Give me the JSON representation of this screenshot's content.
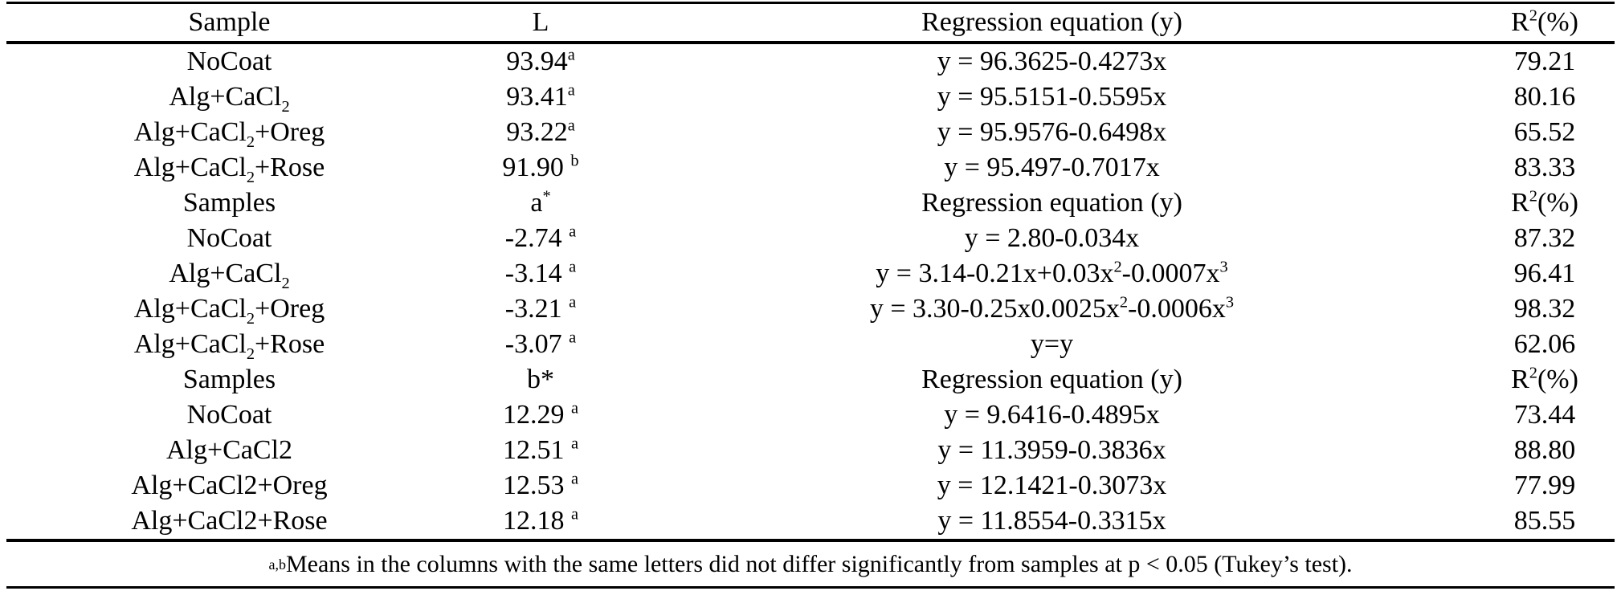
{
  "table": {
    "header": {
      "sample": "Sample",
      "value": "L",
      "equation": "Regression equation (y)",
      "r2": "R^{2}(%)"
    },
    "rows": [
      {
        "sample": "NoCoat",
        "value": "93.94^{a}",
        "equation": "y = 96.3625-0.4273x",
        "r2": "79.21"
      },
      {
        "sample": "Alg+CaCl_{2}",
        "value": "93.41^{a}",
        "equation": "y = 95.5151-0.5595x",
        "r2": "80.16"
      },
      {
        "sample": "Alg+CaCl_{2}+Oreg",
        "value": "93.22^{a}",
        "equation": "y = 95.9576-0.6498x",
        "r2": "65.52"
      },
      {
        "sample": "Alg+CaCl_{2}+Rose",
        "value": "91.90 ^{b}",
        "equation": "y = 95.497-0.7017x",
        "r2": "83.33"
      },
      {
        "sample": "Samples",
        "value": "a^{*}",
        "equation": "Regression equation (y)",
        "r2": "R^{2}(%)"
      },
      {
        "sample": "NoCoat",
        "value": "-2.74 ^{a}",
        "equation": "y = 2.80-0.034x",
        "r2": "87.32"
      },
      {
        "sample": "Alg+CaCl_{2}",
        "value": "-3.14 ^{a}",
        "equation": "y = 3.14-0.21x+0.03x^{2}-0.0007x^{3}",
        "r2": "96.41"
      },
      {
        "sample": "Alg+CaCl_{2}+Oreg",
        "value": "-3.21 ^{a}",
        "equation": "y = 3.30-0.25x0.0025x^{2}-0.0006x^{3}",
        "r2": "98.32"
      },
      {
        "sample": "Alg+CaCl_{2}+Rose",
        "value": "-3.07 ^{a}",
        "equation": "y=y",
        "r2": "62.06"
      },
      {
        "sample": "Samples",
        "value": "b*",
        "equation": "Regression equation (y)",
        "r2": "R^{2}(%)"
      },
      {
        "sample": "NoCoat",
        "value": "12.29 ^{a}",
        "equation": "y = 9.6416-0.4895x",
        "r2": "73.44"
      },
      {
        "sample": "Alg+CaCl2",
        "value": "12.51 ^{a}",
        "equation": "y = 11.3959-0.3836x",
        "r2": "88.80"
      },
      {
        "sample": "Alg+CaCl2+Oreg",
        "value": "12.53 ^{a}",
        "equation": "y = 12.1421-0.3073x",
        "r2": "77.99"
      },
      {
        "sample": "Alg+CaCl2+Rose",
        "value": "12.18 ^{a}",
        "equation": "y = 11.8554-0.3315x",
        "r2": "85.55"
      }
    ],
    "footnote": "^{a,b}Means in the columns with the same letters did not differ significantly from samples at p < 0.05 (Tukey’s test)."
  }
}
